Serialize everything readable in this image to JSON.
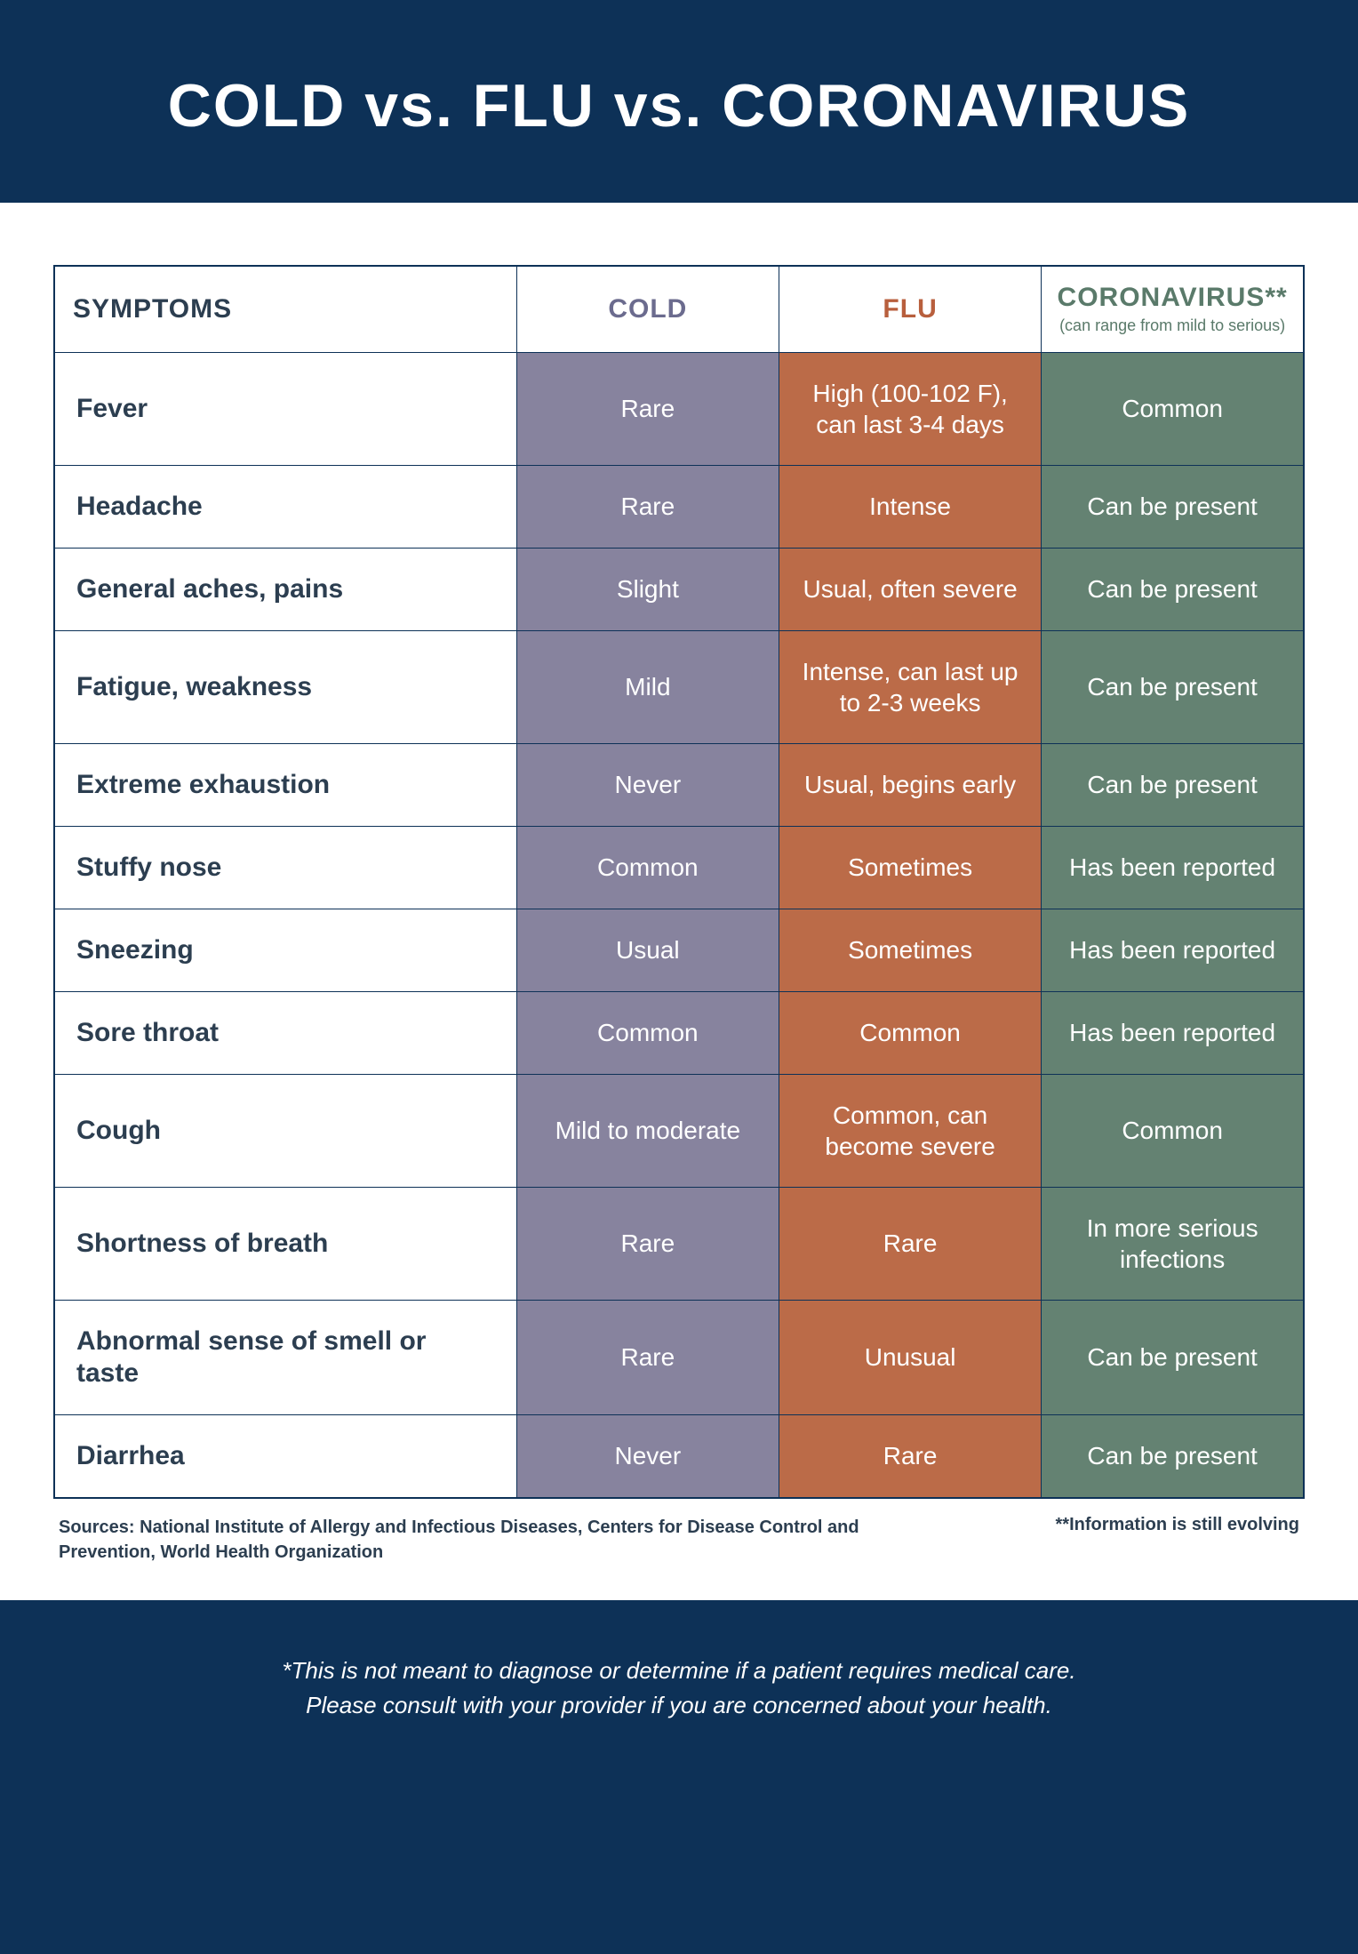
{
  "title": "COLD vs. FLU vs. CORONAVIRUS",
  "colors": {
    "header_bg": "#0d3157",
    "cold_col": "#87839e",
    "flu_col": "#bb6b48",
    "corona_col": "#648272",
    "cold_header_text": "#6b6b8e",
    "flu_header_text": "#b85f3d",
    "corona_header_text": "#5a7a6a",
    "cell_text": "#ffffff",
    "symptom_text": "#2c3e50"
  },
  "headers": {
    "symptoms": "SYMPTOMS",
    "cold": "COLD",
    "flu": "FLU",
    "coronavirus": "CORONAVIRUS**",
    "coronavirus_sub": "(can range from mild to serious)"
  },
  "rows": [
    {
      "symptom": "Fever",
      "cold": "Rare",
      "flu": "High (100-102 F), can last 3-4 days",
      "corona": "Common"
    },
    {
      "symptom": "Headache",
      "cold": "Rare",
      "flu": "Intense",
      "corona": "Can be present"
    },
    {
      "symptom": "General aches, pains",
      "cold": "Slight",
      "flu": "Usual, often severe",
      "corona": "Can be present"
    },
    {
      "symptom": "Fatigue, weakness",
      "cold": "Mild",
      "flu": "Intense, can last up to 2-3 weeks",
      "corona": "Can be present"
    },
    {
      "symptom": "Extreme exhaustion",
      "cold": "Never",
      "flu": "Usual, begins early",
      "corona": "Can be present"
    },
    {
      "symptom": "Stuffy nose",
      "cold": "Common",
      "flu": "Sometimes",
      "corona": "Has been reported"
    },
    {
      "symptom": "Sneezing",
      "cold": "Usual",
      "flu": "Sometimes",
      "corona": "Has been reported"
    },
    {
      "symptom": "Sore throat",
      "cold": "Common",
      "flu": "Common",
      "corona": "Has been reported"
    },
    {
      "symptom": "Cough",
      "cold": "Mild to moderate",
      "flu": "Common, can become severe",
      "corona": "Common"
    },
    {
      "symptom": "Shortness of breath",
      "cold": "Rare",
      "flu": "Rare",
      "corona": "In more serious infections"
    },
    {
      "symptom": "Abnormal sense of smell or taste",
      "cold": "Rare",
      "flu": "Unusual",
      "corona": "Can be present"
    },
    {
      "symptom": "Diarrhea",
      "cold": "Never",
      "flu": "Rare",
      "corona": "Can be present"
    }
  ],
  "sources": "Sources: National Institute of Allergy and Infectious Diseases, Centers for Disease Control and Prevention, World Health Organization",
  "evolving_note": "**Information is still evolving",
  "disclaimer_1": "*This is not meant to diagnose or determine if a patient requires medical care.",
  "disclaimer_2": "Please consult with your provider if you are concerned about your health."
}
